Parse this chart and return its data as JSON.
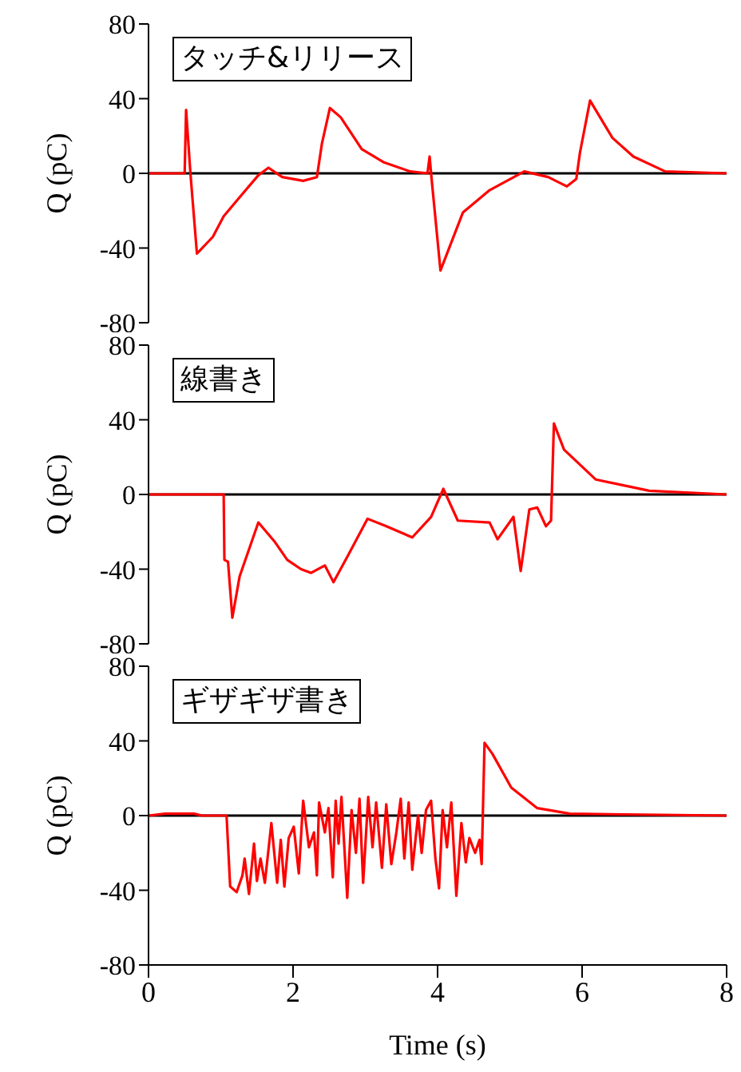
{
  "chart_data": [
    {
      "type": "line",
      "ylabel": "Q (pC)",
      "annotations": [
        "タッチ&リリース"
      ],
      "xlim": [
        0,
        8
      ],
      "xticks": [
        0,
        2,
        4,
        6,
        8
      ],
      "ylim": [
        -80,
        80
      ],
      "yticks": [
        -80,
        -40,
        0,
        40,
        80
      ],
      "tick_labels": "y",
      "ref_lines": [
        {
          "axis": "y",
          "value": 0,
          "color": "#000000"
        }
      ],
      "x": [
        0,
        0.5,
        0.52,
        0.58,
        0.67,
        0.89,
        1.04,
        1.3,
        1.52,
        1.66,
        1.85,
        2.14,
        2.33,
        2.4,
        2.51,
        2.66,
        2.95,
        3.25,
        3.62,
        3.86,
        3.89,
        3.91,
        4.04,
        4.35,
        4.72,
        5.2,
        5.53,
        5.79,
        5.92,
        5.97,
        6.11,
        6.42,
        6.71,
        7.15,
        8
      ],
      "series": [
        {
          "color": "#ff0000",
          "values": [
            0,
            0,
            34,
            0,
            -43,
            -34,
            -23,
            -11,
            -1,
            3,
            -2,
            -4,
            -2,
            16,
            35,
            30,
            13,
            6,
            1,
            0,
            9,
            0,
            -52,
            -21,
            -9,
            1,
            -2,
            -7,
            -3,
            11,
            39,
            19,
            9,
            1,
            0
          ]
        }
      ]
    },
    {
      "type": "line",
      "ylabel": "Q (pC)",
      "annotations": [
        "線書き"
      ],
      "xlim": [
        0,
        8
      ],
      "xticks": [
        0,
        2,
        4,
        6,
        8
      ],
      "ylim": [
        -80,
        80
      ],
      "yticks": [
        -80,
        -40,
        0,
        40,
        80
      ],
      "tick_labels": "y",
      "ref_lines": [
        {
          "axis": "y",
          "value": 0,
          "color": "#000000"
        }
      ],
      "x": [
        0,
        1.04,
        1.05,
        1.1,
        1.16,
        1.26,
        1.52,
        1.74,
        1.92,
        2.11,
        2.25,
        2.44,
        2.56,
        2.77,
        3.03,
        3.29,
        3.65,
        3.91,
        4.08,
        4.28,
        4.72,
        4.83,
        5.05,
        5.15,
        5.27,
        5.38,
        5.5,
        5.57,
        5.61,
        5.75,
        6.19,
        6.93,
        8
      ],
      "series": [
        {
          "color": "#ff0000",
          "values": [
            0,
            0,
            -35,
            -36,
            -66,
            -44,
            -15,
            -25,
            -35,
            -40,
            -42,
            -38,
            -47,
            -32,
            -13,
            -17,
            -23,
            -12,
            3,
            -14,
            -15,
            -24,
            -12,
            -41,
            -8,
            -7,
            -17,
            -14,
            38,
            24,
            8,
            2,
            0
          ]
        }
      ]
    },
    {
      "type": "line",
      "xlabel": "Time (s)",
      "ylabel": "Q (pC)",
      "annotations": [
        "ギザギザ書き"
      ],
      "xlim": [
        0,
        8
      ],
      "xticks": [
        0,
        2,
        4,
        6,
        8
      ],
      "ylim": [
        -80,
        80
      ],
      "yticks": [
        -80,
        -40,
        0,
        40,
        80
      ],
      "ref_lines": [
        {
          "axis": "y",
          "value": 0,
          "color": "#000000"
        }
      ],
      "x": [
        0,
        0.23,
        0.63,
        0.74,
        1.08,
        1.13,
        1.22,
        1.3,
        1.33,
        1.39,
        1.46,
        1.5,
        1.55,
        1.61,
        1.7,
        1.78,
        1.83,
        1.88,
        1.94,
        2.01,
        2.08,
        2.14,
        2.22,
        2.29,
        2.33,
        2.36,
        2.44,
        2.49,
        2.55,
        2.59,
        2.63,
        2.67,
        2.75,
        2.81,
        2.87,
        2.92,
        2.97,
        3.04,
        3.1,
        3.15,
        3.23,
        3.29,
        3.36,
        3.43,
        3.49,
        3.54,
        3.6,
        3.65,
        3.73,
        3.78,
        3.84,
        3.91,
        3.97,
        4.02,
        4.07,
        4.13,
        4.19,
        4.26,
        4.33,
        4.39,
        4.44,
        4.52,
        4.58,
        4.61,
        4.65,
        4.76,
        5.02,
        5.38,
        5.83,
        8
      ],
      "series": [
        {
          "color": "#ff0000",
          "values": [
            0,
            1,
            1,
            0,
            0,
            -38,
            -41,
            -32,
            -23,
            -42,
            -15,
            -35,
            -23,
            -36,
            -4,
            -36,
            -13,
            -38,
            -12,
            -6,
            -31,
            8,
            -17,
            -9,
            -32,
            7,
            -9,
            4,
            -33,
            8,
            -15,
            10,
            -44,
            3,
            -20,
            9,
            -36,
            10,
            -17,
            7,
            -28,
            6,
            -26,
            -9,
            9,
            -23,
            7,
            -29,
            0,
            -20,
            3,
            8,
            -23,
            -39,
            3,
            -17,
            7,
            -43,
            -4,
            -25,
            -12,
            -20,
            -13,
            -26,
            39,
            33,
            15,
            4,
            1,
            0
          ]
        }
      ]
    }
  ]
}
